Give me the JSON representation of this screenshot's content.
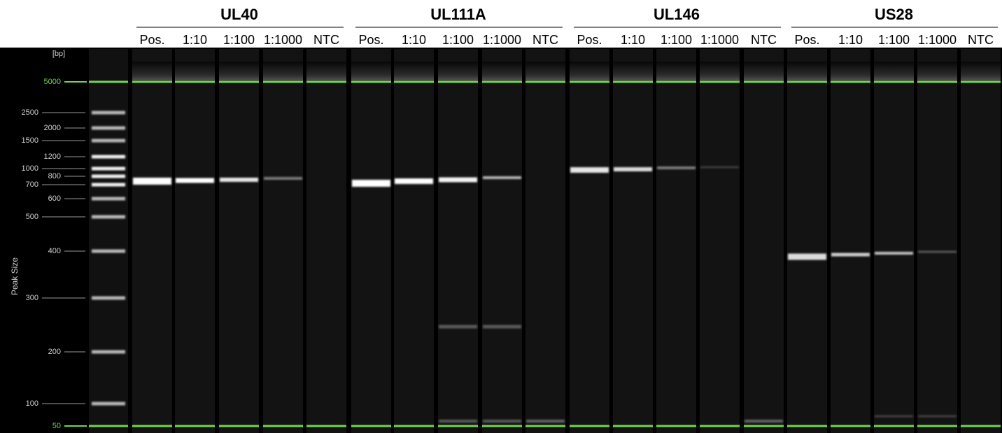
{
  "header": {
    "groups": [
      {
        "title": "UL40",
        "lanes": [
          "Pos.",
          "1:10",
          "1:100",
          "1:1000",
          "NTC"
        ]
      },
      {
        "title": "UL111A",
        "lanes": [
          "Pos.",
          "1:10",
          "1:100",
          "1:1000",
          "NTC"
        ]
      },
      {
        "title": "UL146",
        "lanes": [
          "Pos.",
          "1:10",
          "1:100",
          "1:1000",
          "NTC"
        ]
      },
      {
        "title": "US28",
        "lanes": [
          "Pos.",
          "1:10",
          "1:100",
          "1:1000",
          "NTC"
        ]
      }
    ]
  },
  "axis": {
    "unit": "[bp]",
    "label": "Peak Size",
    "ticks": [
      "5000",
      "2500",
      "2000",
      "1500",
      "1200",
      "1000",
      "800",
      "700",
      "600",
      "500",
      "400",
      "300",
      "200",
      "100",
      "50"
    ]
  }
}
